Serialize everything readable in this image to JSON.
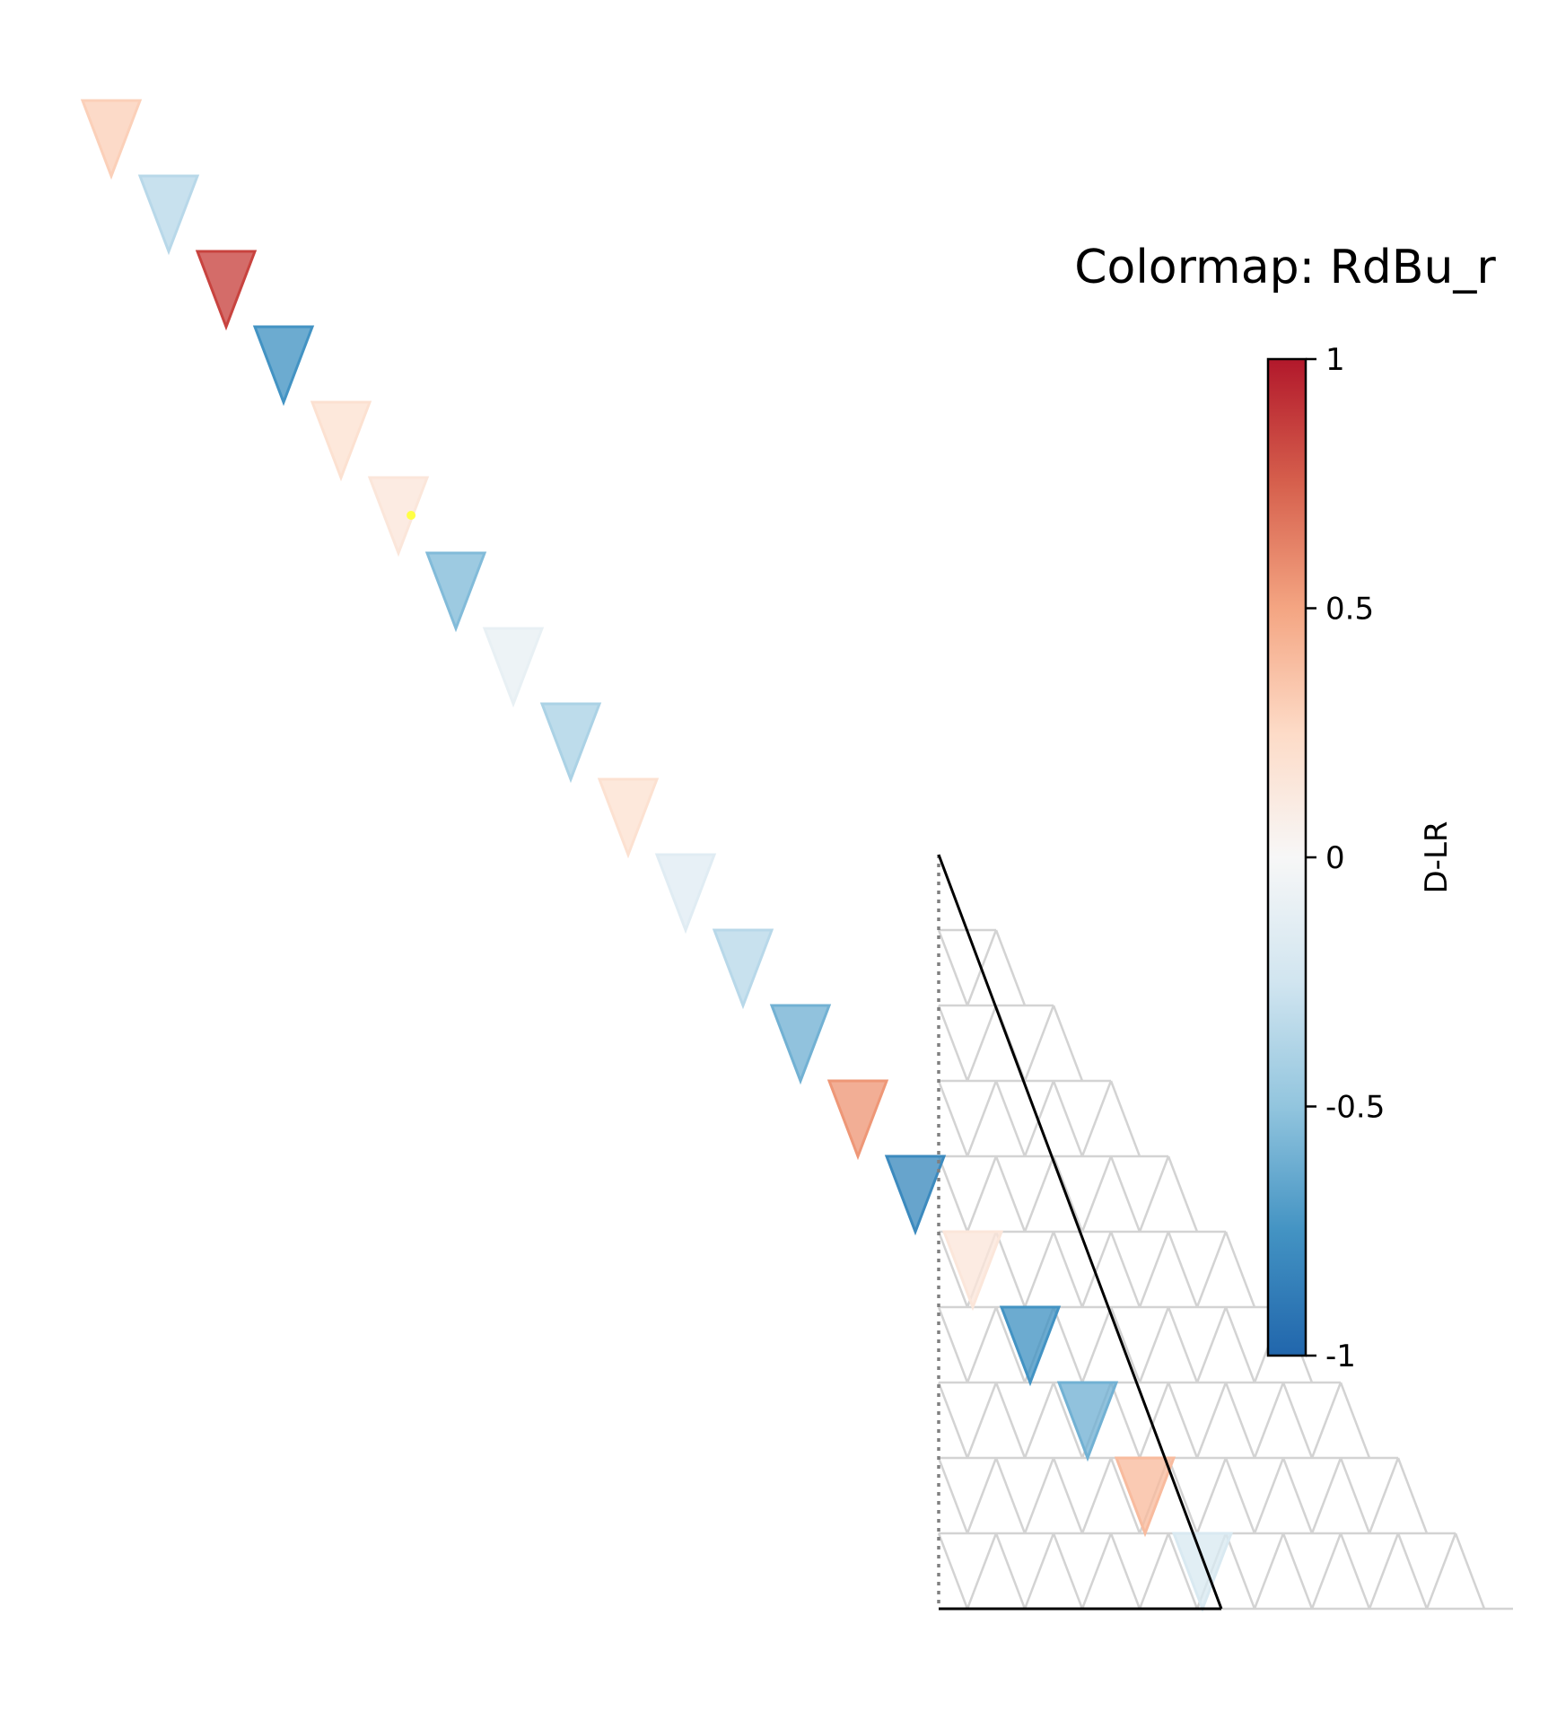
{
  "chart_data": {
    "type": "heatmap",
    "title": "Colormap: RdBu_r",
    "colorbar": {
      "label": "D-LR",
      "min": -1,
      "max": 1,
      "ticks": [
        1,
        0.5,
        0,
        -0.5,
        -1
      ],
      "tick_labels": [
        "1",
        "0.5",
        "0",
        "-0.5",
        "-1"
      ]
    },
    "diagonal_values": [
      0.3,
      -0.35,
      0.85,
      -0.75,
      0.2,
      0.15,
      -0.55,
      -0.1,
      -0.4,
      0.2,
      -0.15,
      -0.35,
      -0.6,
      0.55,
      -0.8,
      0.15,
      -0.75,
      -0.6,
      0.4,
      -0.2
    ],
    "grid": {
      "rows": 10,
      "first_triangle_row": 1
    },
    "highlight_marker": {
      "index": 5,
      "color": "#ffff44"
    },
    "colors": {
      "grid_line": "#d3d3d3",
      "boundary": "#000000",
      "dotted_edge": "#808080"
    }
  }
}
